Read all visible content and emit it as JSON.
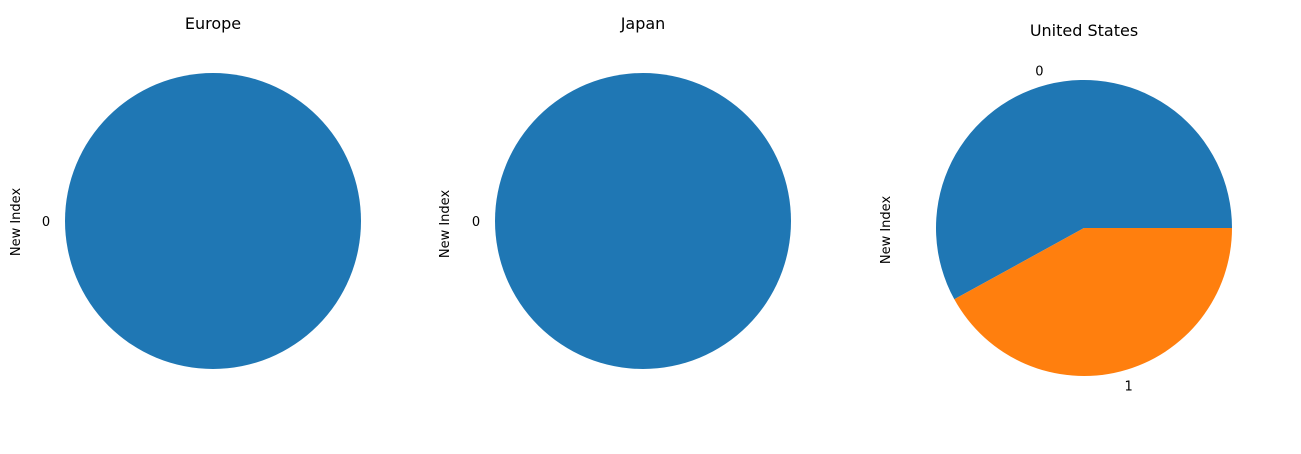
{
  "chart_data": [
    {
      "type": "pie",
      "title": "Europe",
      "ylabel": "New Index",
      "labels": [
        "0"
      ],
      "values": [
        1
      ],
      "colors": [
        "#1f77b4"
      ]
    },
    {
      "type": "pie",
      "title": "Japan",
      "ylabel": "New Index",
      "labels": [
        "0"
      ],
      "values": [
        1
      ],
      "colors": [
        "#1f77b4"
      ]
    },
    {
      "type": "pie",
      "title": "United States",
      "ylabel": "New Index",
      "labels": [
        "0",
        "1"
      ],
      "values": [
        0.58,
        0.42
      ],
      "colors": [
        "#1f77b4",
        "#ff7f0e"
      ]
    }
  ]
}
